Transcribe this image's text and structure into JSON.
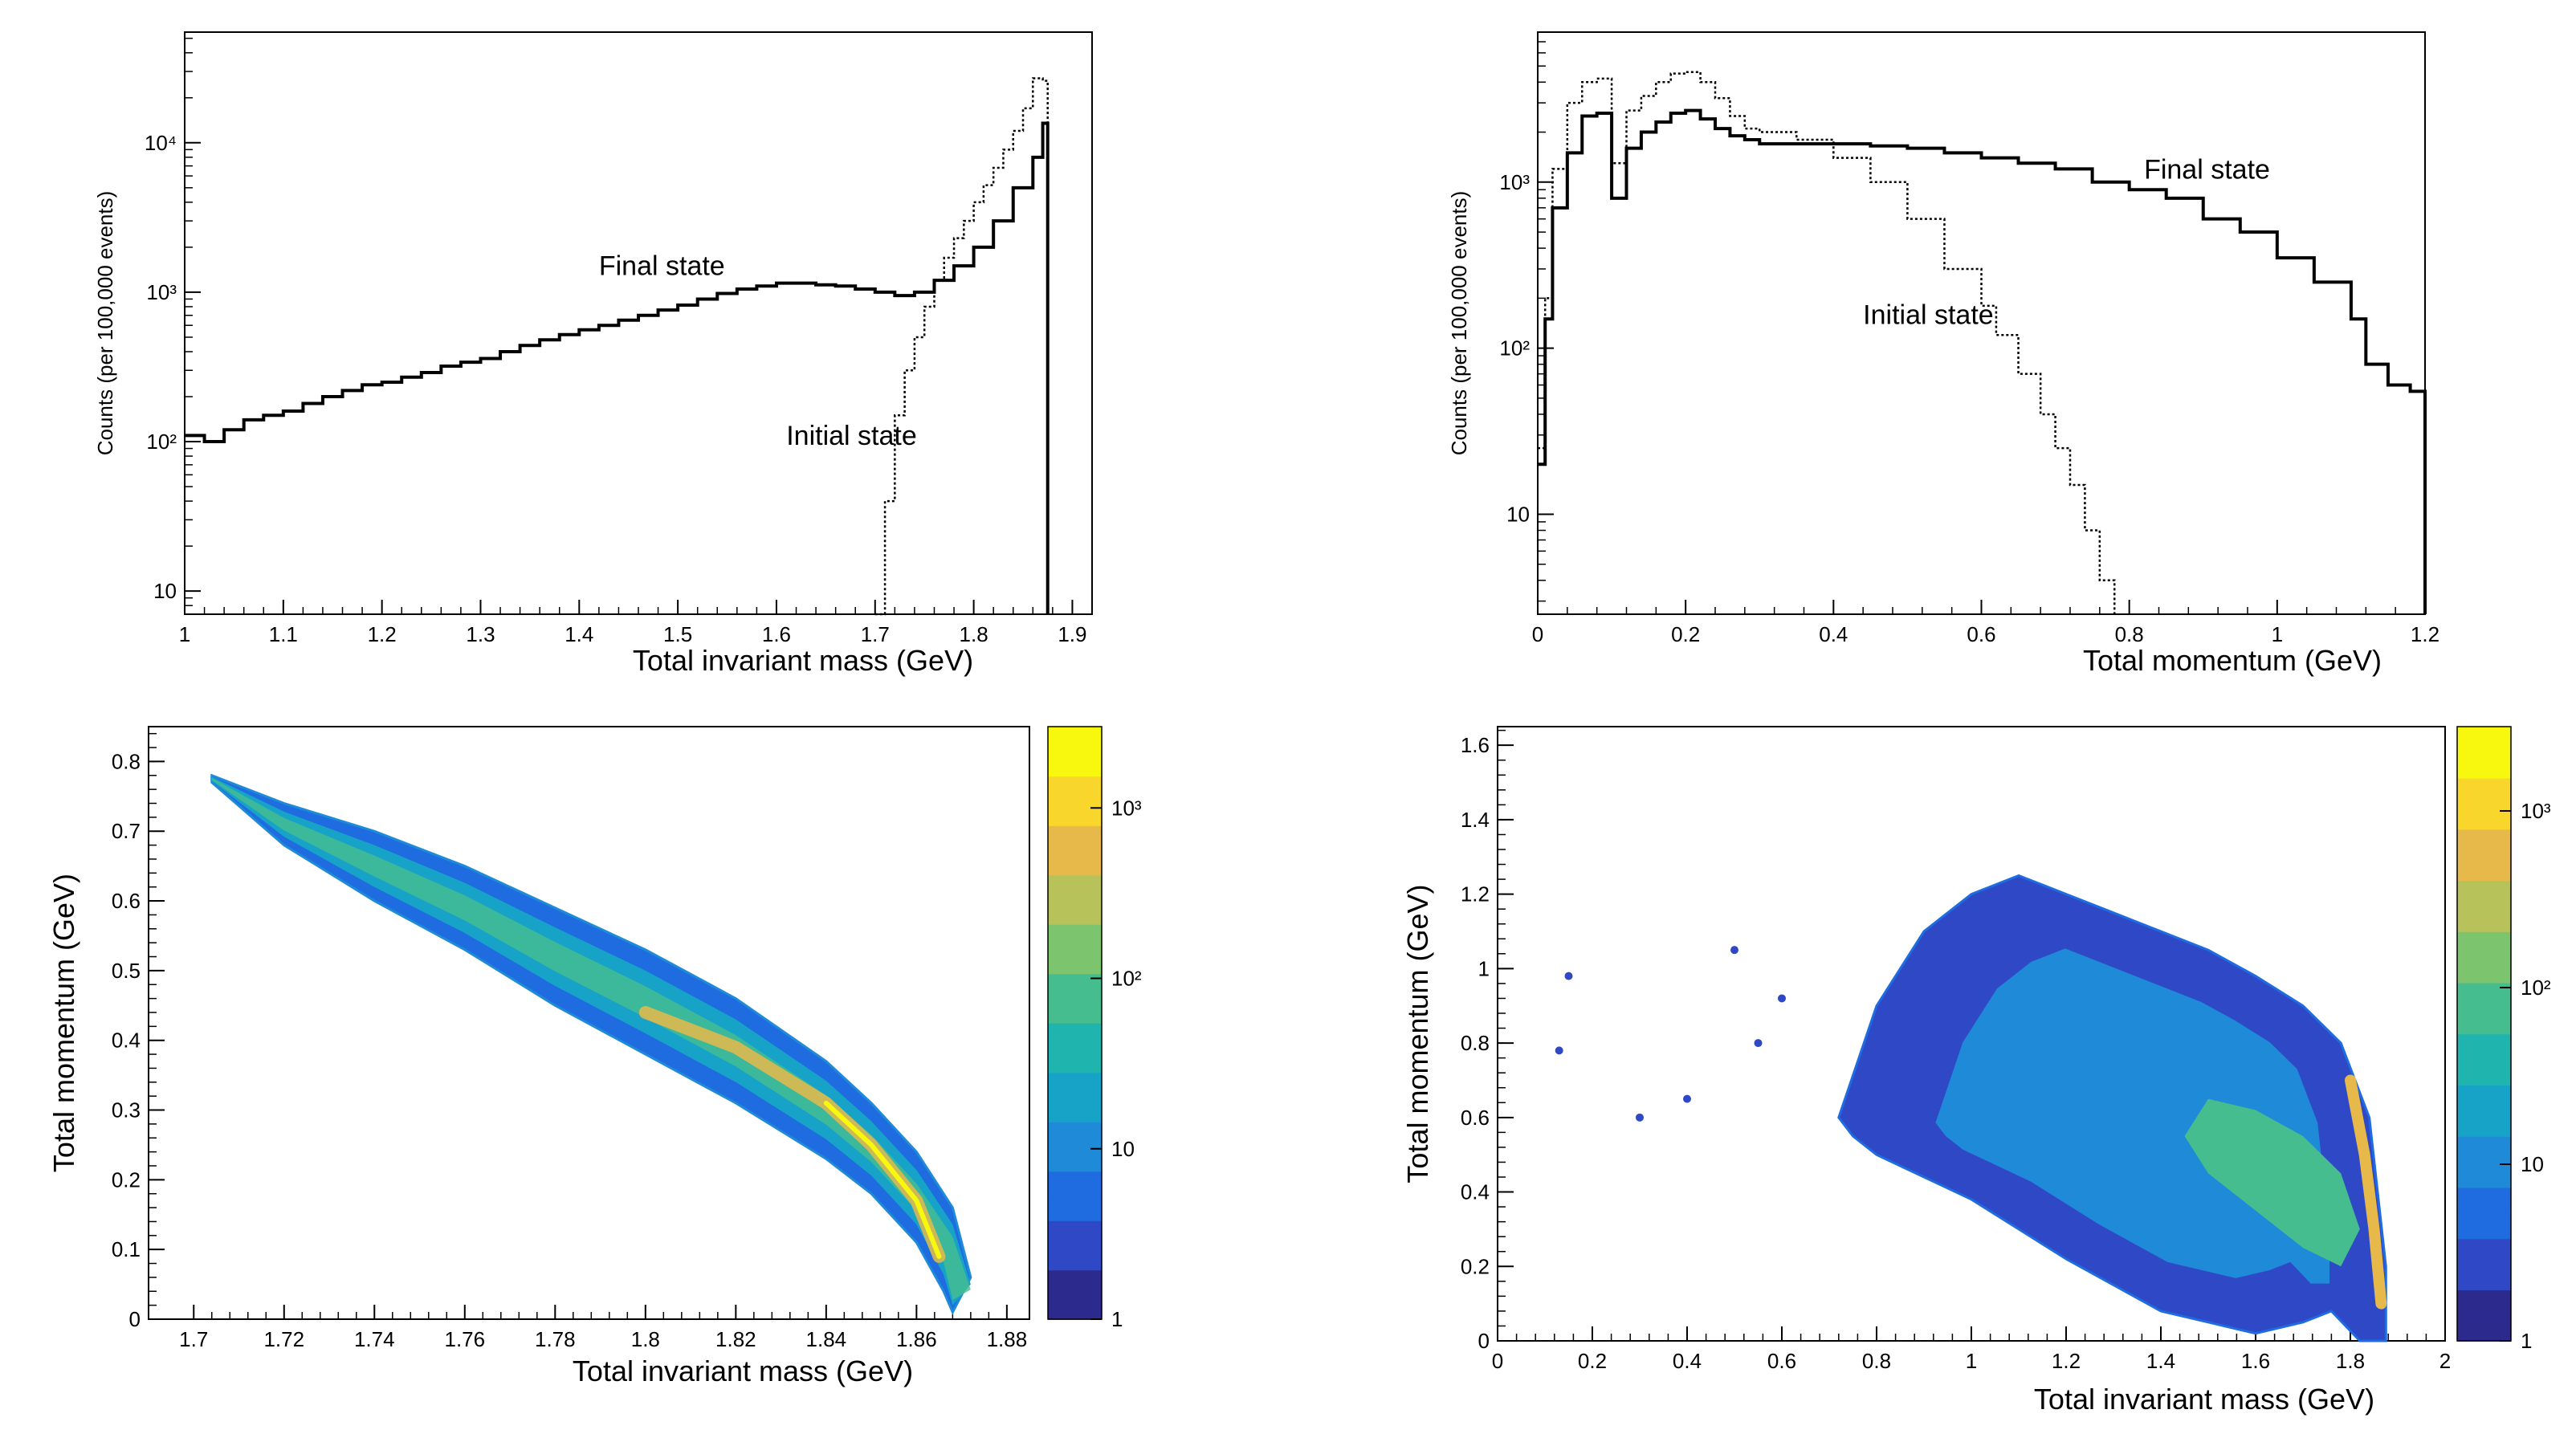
{
  "chart_data": [
    {
      "id": "mass_hist",
      "type": "line",
      "title": "",
      "xlabel": "Total invariant mass (GeV)",
      "ylabel": "Counts (per 100,000 events)",
      "xlim": [
        1.0,
        1.92
      ],
      "ylim": [
        7,
        55000
      ],
      "yscale": "log",
      "xticks": [
        1.0,
        1.1,
        1.2,
        1.3,
        1.4,
        1.5,
        1.6,
        1.7,
        1.8,
        1.9
      ],
      "xtick_labels": [
        "1",
        "1.1",
        "1.2",
        "1.3",
        "1.4",
        "1.5",
        "1.6",
        "1.7",
        "1.8",
        "1.9"
      ],
      "yticks": [
        10,
        100,
        1000,
        10000
      ],
      "ytick_labels": [
        "10",
        "10²",
        "10³",
        "10⁴"
      ],
      "annotations": [
        {
          "text": "Final state",
          "x": 1.42,
          "y": 1300
        },
        {
          "text": "Initial state",
          "x": 1.61,
          "y": 95
        }
      ],
      "series": [
        {
          "name": "Final state",
          "style": "solid",
          "x": [
            1.0,
            1.02,
            1.04,
            1.06,
            1.08,
            1.1,
            1.12,
            1.14,
            1.16,
            1.18,
            1.2,
            1.22,
            1.24,
            1.26,
            1.28,
            1.3,
            1.32,
            1.34,
            1.36,
            1.38,
            1.4,
            1.42,
            1.44,
            1.46,
            1.48,
            1.5,
            1.52,
            1.54,
            1.56,
            1.58,
            1.6,
            1.62,
            1.64,
            1.66,
            1.68,
            1.7,
            1.72,
            1.74,
            1.76,
            1.78,
            1.8,
            1.82,
            1.84,
            1.86,
            1.87,
            1.875
          ],
          "values": [
            110,
            100,
            120,
            140,
            150,
            160,
            180,
            200,
            220,
            240,
            250,
            270,
            290,
            320,
            340,
            360,
            400,
            440,
            480,
            520,
            560,
            600,
            650,
            700,
            760,
            820,
            900,
            980,
            1050,
            1100,
            1150,
            1150,
            1120,
            1100,
            1050,
            1000,
            950,
            1000,
            1200,
            1500,
            2000,
            3000,
            5000,
            8000,
            13500,
            13500
          ]
        },
        {
          "name": "Initial state",
          "style": "dotted",
          "x": [
            1.7,
            1.71,
            1.72,
            1.73,
            1.74,
            1.75,
            1.76,
            1.77,
            1.78,
            1.79,
            1.8,
            1.81,
            1.82,
            1.83,
            1.84,
            1.85,
            1.86,
            1.87,
            1.875
          ],
          "values": [
            7,
            40,
            150,
            300,
            500,
            800,
            1200,
            1700,
            2300,
            3000,
            4000,
            5200,
            6800,
            9000,
            12000,
            17000,
            27000,
            26000,
            26000
          ]
        }
      ]
    },
    {
      "id": "momentum_hist",
      "type": "line",
      "title": "",
      "xlabel": "Total momentum (GeV)",
      "ylabel": "Counts (per 100,000 events)",
      "xlim": [
        0.0,
        1.2
      ],
      "ylim": [
        2.5,
        8000
      ],
      "yscale": "log",
      "xticks": [
        0,
        0.2,
        0.4,
        0.6,
        0.8,
        1.0,
        1.2
      ],
      "xtick_labels": [
        "0",
        "0.2",
        "0.4",
        "0.6",
        "0.8",
        "1",
        "1.2"
      ],
      "yticks": [
        10,
        100,
        1000
      ],
      "ytick_labels": [
        "10",
        "10²",
        "10³"
      ],
      "annotations": [
        {
          "text": "Final state",
          "x": 0.82,
          "y": 1050
        },
        {
          "text": "Initial state",
          "x": 0.44,
          "y": 140
        }
      ],
      "series": [
        {
          "name": "Final state",
          "style": "solid",
          "x": [
            0.0,
            0.01,
            0.02,
            0.04,
            0.06,
            0.08,
            0.1,
            0.12,
            0.14,
            0.16,
            0.18,
            0.2,
            0.22,
            0.24,
            0.26,
            0.28,
            0.3,
            0.35,
            0.4,
            0.45,
            0.5,
            0.55,
            0.6,
            0.65,
            0.7,
            0.75,
            0.8,
            0.85,
            0.9,
            0.95,
            1.0,
            1.05,
            1.1,
            1.12,
            1.15,
            1.18,
            1.2
          ],
          "values": [
            20,
            150,
            700,
            1500,
            2500,
            2600,
            800,
            1600,
            2000,
            2300,
            2600,
            2700,
            2400,
            2100,
            1900,
            1800,
            1700,
            1700,
            1700,
            1650,
            1600,
            1500,
            1400,
            1300,
            1200,
            1000,
            900,
            800,
            600,
            500,
            350,
            250,
            150,
            80,
            60,
            55,
            40
          ]
        },
        {
          "name": "Initial state",
          "style": "dotted",
          "x": [
            0.0,
            0.01,
            0.02,
            0.04,
            0.06,
            0.08,
            0.1,
            0.12,
            0.14,
            0.16,
            0.18,
            0.2,
            0.22,
            0.24,
            0.26,
            0.28,
            0.3,
            0.35,
            0.4,
            0.45,
            0.5,
            0.55,
            0.6,
            0.62,
            0.65,
            0.68,
            0.7,
            0.72,
            0.74,
            0.76,
            0.78
          ],
          "values": [
            25,
            200,
            1200,
            3000,
            4000,
            4200,
            1300,
            2700,
            3300,
            4000,
            4500,
            4600,
            4000,
            3200,
            2500,
            2100,
            2000,
            1800,
            1400,
            1000,
            600,
            300,
            180,
            120,
            70,
            40,
            25,
            15,
            8,
            4,
            2.5
          ]
        }
      ]
    },
    {
      "id": "mass_vs_momentum_initial",
      "type": "heatmap",
      "title": "",
      "xlabel": "Total invariant mass (GeV)",
      "ylabel": "Total momentum (GeV)",
      "xlim": [
        1.69,
        1.885
      ],
      "ylim": [
        0,
        0.85
      ],
      "xticks": [
        1.7,
        1.72,
        1.74,
        1.76,
        1.78,
        1.8,
        1.82,
        1.84,
        1.86,
        1.88
      ],
      "xtick_labels": [
        "1.7",
        "1.72",
        "1.74",
        "1.76",
        "1.78",
        "1.8",
        "1.82",
        "1.84",
        "1.86",
        "1.88"
      ],
      "yticks": [
        0,
        0.1,
        0.2,
        0.3,
        0.4,
        0.5,
        0.6,
        0.7,
        0.8
      ],
      "ytick_labels": [
        "0",
        "0.1",
        "0.2",
        "0.3",
        "0.4",
        "0.5",
        "0.6",
        "0.7",
        "0.8"
      ],
      "colorbar": {
        "min": 1,
        "max": 3000,
        "scale": "log",
        "ticks": [
          1,
          10,
          100,
          1000
        ],
        "tick_labels": [
          "1",
          "10",
          "10²",
          "10³"
        ]
      },
      "band_upper": {
        "x": [
          1.704,
          1.72,
          1.74,
          1.76,
          1.78,
          1.8,
          1.82,
          1.84,
          1.85,
          1.86,
          1.868,
          1.872
        ],
        "y": [
          0.78,
          0.74,
          0.7,
          0.65,
          0.59,
          0.53,
          0.46,
          0.37,
          0.31,
          0.24,
          0.16,
          0.06
        ]
      },
      "band_lower": {
        "x": [
          1.704,
          1.72,
          1.74,
          1.76,
          1.78,
          1.8,
          1.82,
          1.84,
          1.85,
          1.86,
          1.866,
          1.868
        ],
        "y": [
          0.77,
          0.68,
          0.6,
          0.53,
          0.45,
          0.38,
          0.31,
          0.23,
          0.18,
          0.11,
          0.04,
          0.01
        ]
      },
      "hot_ridge": {
        "x": [
          1.8,
          1.82,
          1.84,
          1.85,
          1.86,
          1.865
        ],
        "y": [
          0.44,
          0.39,
          0.31,
          0.25,
          0.17,
          0.09
        ]
      }
    },
    {
      "id": "mass_vs_momentum_final",
      "type": "heatmap",
      "title": "",
      "xlabel": "Total invariant mass (GeV)",
      "ylabel": "Total momentum (GeV)",
      "xlim": [
        0,
        2
      ],
      "ylim": [
        0,
        1.65
      ],
      "xticks": [
        0,
        0.2,
        0.4,
        0.6,
        0.8,
        1.0,
        1.2,
        1.4,
        1.6,
        1.8,
        2.0
      ],
      "xtick_labels": [
        "0",
        "0.2",
        "0.4",
        "0.6",
        "0.8",
        "1",
        "1.2",
        "1.4",
        "1.6",
        "1.8",
        "2"
      ],
      "yticks": [
        0,
        0.2,
        0.4,
        0.6,
        0.8,
        1.0,
        1.2,
        1.4,
        1.6
      ],
      "ytick_labels": [
        "0",
        "0.2",
        "0.4",
        "0.6",
        "0.8",
        "1",
        "1.2",
        "1.4",
        "1.6"
      ],
      "colorbar": {
        "min": 1,
        "max": 3000,
        "scale": "log",
        "ticks": [
          1,
          10,
          100,
          1000
        ],
        "tick_labels": [
          "1",
          "10",
          "10²",
          "10³"
        ]
      },
      "blob_outline": {
        "x": [
          0.72,
          0.8,
          0.9,
          1.0,
          1.1,
          1.2,
          1.3,
          1.4,
          1.5,
          1.6,
          1.7,
          1.78,
          1.84,
          1.875,
          1.875,
          1.82,
          1.76,
          1.7,
          1.6,
          1.5,
          1.4,
          1.3,
          1.2,
          1.1,
          1.0,
          0.9,
          0.8,
          0.75,
          0.72
        ],
        "y": [
          0.6,
          0.9,
          1.1,
          1.2,
          1.25,
          1.2,
          1.15,
          1.1,
          1.05,
          0.98,
          0.9,
          0.8,
          0.6,
          0.2,
          0.0,
          0.0,
          0.08,
          0.05,
          0.02,
          0.05,
          0.08,
          0.15,
          0.22,
          0.3,
          0.38,
          0.44,
          0.5,
          0.55,
          0.6
        ]
      },
      "dense_core": {
        "x": [
          1.5,
          1.6,
          1.7,
          1.78,
          1.82,
          1.78,
          1.7,
          1.6,
          1.5,
          1.45
        ],
        "y": [
          0.65,
          0.62,
          0.55,
          0.45,
          0.3,
          0.2,
          0.25,
          0.35,
          0.45,
          0.55
        ]
      },
      "hot_edge": {
        "x": [
          1.8,
          1.83,
          1.85,
          1.865
        ],
        "y": [
          0.7,
          0.5,
          0.3,
          0.1
        ]
      }
    }
  ]
}
